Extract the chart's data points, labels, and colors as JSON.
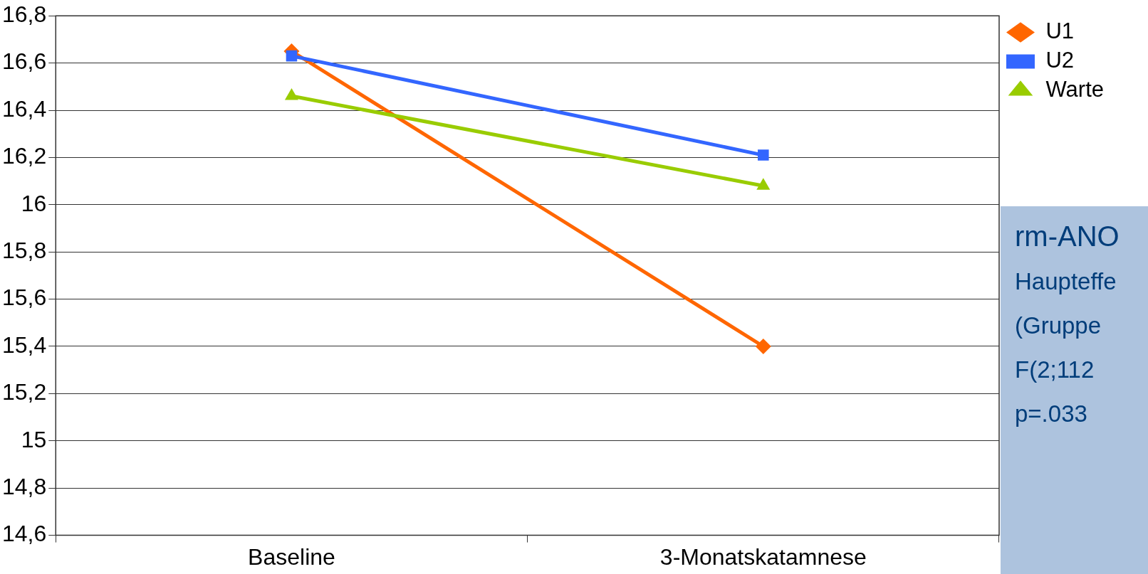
{
  "chart_data": {
    "type": "line",
    "categories": [
      "Baseline",
      "3-Monatskatamnese"
    ],
    "series": [
      {
        "name": "U1",
        "color": "#ff6600",
        "values": [
          16.65,
          15.4
        ],
        "marker": "diamond"
      },
      {
        "name": "U2",
        "color": "#3366ff",
        "values": [
          16.63,
          16.21
        ],
        "marker": "square"
      },
      {
        "name": "Warte",
        "color": "#99cc00",
        "values": [
          16.46,
          16.08
        ],
        "marker": "triangle"
      }
    ],
    "ylim": [
      14.6,
      16.8
    ],
    "yticks": [
      {
        "value": 14.6,
        "label": "14,6"
      },
      {
        "value": 14.8,
        "label": "14,8"
      },
      {
        "value": 15,
        "label": "15"
      },
      {
        "value": 15.2,
        "label": "15,2"
      },
      {
        "value": 15.4,
        "label": "15,4"
      },
      {
        "value": 15.6,
        "label": "15,6"
      },
      {
        "value": 15.8,
        "label": "15,8"
      },
      {
        "value": 16,
        "label": "16"
      },
      {
        "value": 16.2,
        "label": "16,2"
      },
      {
        "value": 16.4,
        "label": "16,4"
      },
      {
        "value": 16.6,
        "label": "16,6"
      },
      {
        "value": 16.8,
        "label": "16,8"
      }
    ],
    "grid": "y",
    "legend": "top right",
    "line_style": "solid",
    "annotations": [
      "rm-ANO",
      "Haupteffe",
      "(Gruppe",
      "F(2;112",
      "p=.033"
    ]
  }
}
